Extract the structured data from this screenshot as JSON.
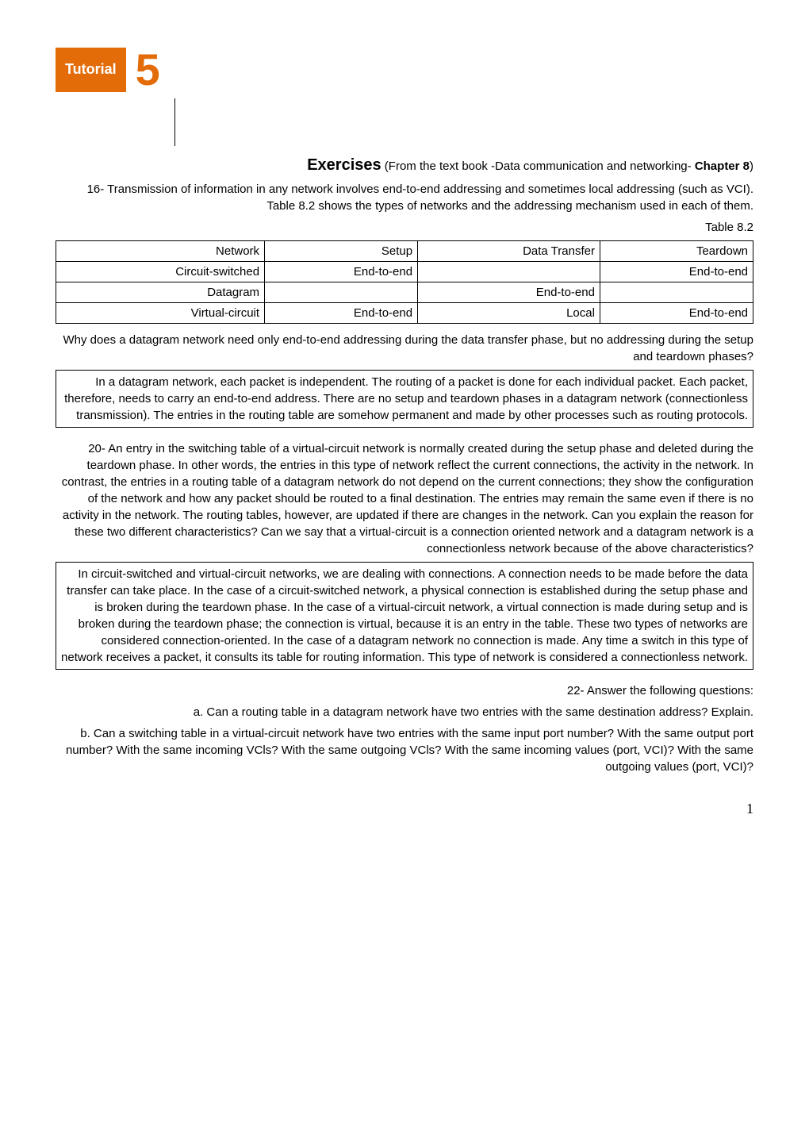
{
  "badge": {
    "label": "Tutorial",
    "number": "5",
    "label_bg": "#e36c09",
    "label_color": "#ffffff",
    "number_color": "#e36c09"
  },
  "exercises": {
    "title": "Exercises",
    "source": " (From the text book -Data communication and networking- ",
    "chapter": "Chapter 8",
    "source_close": ")"
  },
  "q16": {
    "text": "16- Transmission of information in any network involves end-to-end addressing and sometimes local addressing (such as VCI). Table 8.2 shows the types of networks and the addressing mechanism used in each of them.",
    "table_caption": "Table 8.2",
    "table": {
      "header": [
        "Network",
        "Setup",
        "Data Transfer",
        "Teardown"
      ],
      "rows": [
        [
          "Circuit-switched",
          "End-to-end",
          "",
          "End-to-end"
        ],
        [
          "Datagram",
          "",
          "End-to-end",
          ""
        ],
        [
          "Virtual-circuit",
          "End-to-end",
          "Local",
          "End-to-end"
        ]
      ]
    },
    "followup": "Why does a datagram network need only end-to-end addressing during the data transfer phase, but no addressing during the setup and teardown phases?",
    "answer": "In a datagram network, each packet is independent. The routing of a packet is done for each individual packet. Each packet, therefore, needs to carry an end-to-end address. There are no setup and teardown phases in a datagram network (connectionless transmission). The entries in the routing table are somehow permanent and made by other processes such as routing protocols."
  },
  "q20": {
    "text": "20- An entry in the switching table of a virtual-circuit network is normally created during the setup phase and deleted during the teardown phase. In other words, the entries in this type of network reflect the current connections, the activity in the network. In contrast, the entries in a routing table of a datagram network do not depend on the current connections; they show the configuration of the network and how any packet should be routed to a final destination. The entries may remain the same even if there is no activity in the network. The routing tables, however, are updated if there are changes in the network. Can you explain the reason for these two different characteristics? Can we say that a virtual-circuit is a connection oriented network and a datagram network is a connectionless network because of the above characteristics?",
    "answer": "In circuit-switched and virtual-circuit networks, we are dealing with connections. A connection needs to be made before the data transfer can take place. In the case of a circuit-switched network, a physical connection is established during the setup phase and is broken during the teardown phase. In the case of a virtual-circuit network, a virtual connection is made during setup and is broken during the teardown phase; the connection is virtual, because it is an entry in the table. These two types of networks are considered connection-oriented. In the case of a datagram network no connection is made. Any time a switch in this type of network receives a packet, it consults its table for routing information. This type of network is considered a connectionless network."
  },
  "q22": {
    "lead": "22- Answer the following questions:",
    "a": "a. Can a routing table in a datagram network have two entries with the same destination address? Explain.",
    "b": "b. Can a switching table in a virtual-circuit network have two entries with the same input port number? With the same output port number? With the same incoming VCls? With the same outgoing VCls? With the same incoming values (port, VCI)? With the same outgoing values (port, VCI)?"
  },
  "pagenum": "1"
}
